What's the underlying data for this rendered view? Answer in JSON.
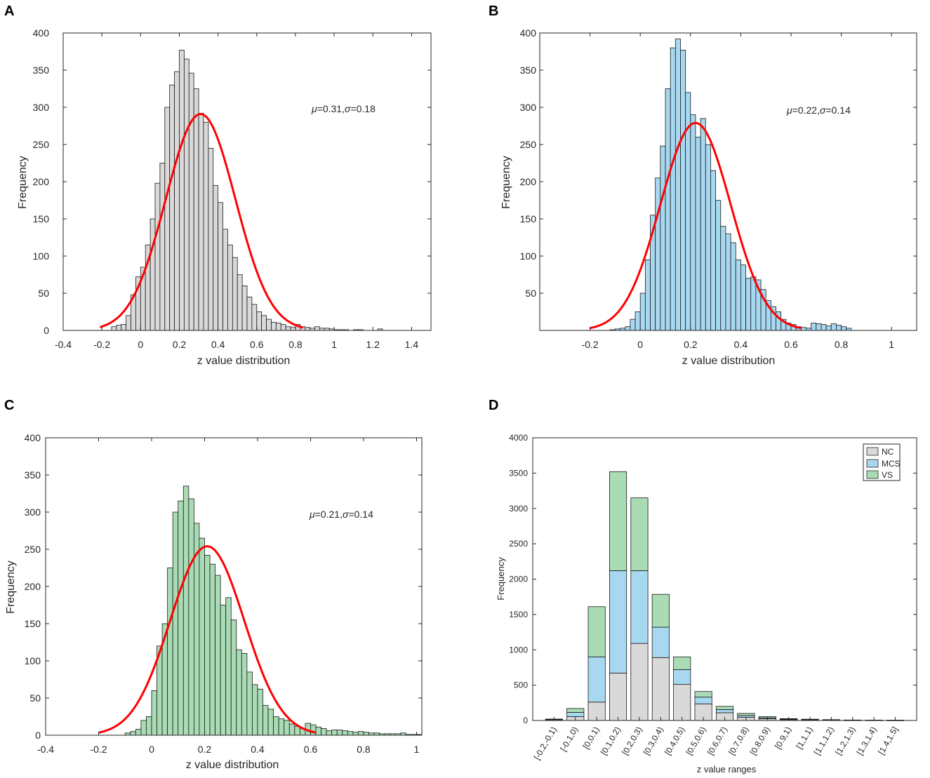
{
  "chart_data": [
    {
      "panel": "A",
      "type": "bar",
      "subtype": "histogram_with_normal_fit",
      "xlabel": "z value distribution",
      "ylabel": "Frequency",
      "xlim": [
        -0.4,
        1.5
      ],
      "ylim": [
        0,
        400
      ],
      "xticks": [
        "-0.4",
        "-0.2",
        "0",
        "0.2",
        "0.4",
        "0.6",
        "0.8",
        "1",
        "1.2",
        "1.4"
      ],
      "yticks": [
        "0",
        "50",
        "100",
        "150",
        "200",
        "250",
        "300",
        "350",
        "400"
      ],
      "bar_color": "#d9d9d9",
      "fit_color": "#ff0000",
      "bin_start": -0.15,
      "bin_width": 0.025,
      "values": [
        5,
        7,
        8,
        20,
        48,
        72,
        85,
        115,
        150,
        198,
        225,
        300,
        330,
        348,
        377,
        365,
        346,
        325,
        292,
        280,
        245,
        195,
        172,
        136,
        115,
        98,
        75,
        60,
        45,
        35,
        25,
        20,
        15,
        11,
        10,
        8,
        5,
        4,
        8,
        5,
        4,
        3,
        5,
        3,
        3,
        2,
        1,
        1,
        1,
        0,
        1,
        1,
        0,
        0,
        0,
        2
      ],
      "fit": {
        "mu": 0.31,
        "sigma": 0.18,
        "peak": 291,
        "x_from": -0.21,
        "x_to": 0.84
      },
      "annotation": {
        "mu_symbol": "μ",
        "mu_value": "=0.31,",
        "sigma_symbol": "σ",
        "sigma_value": "=0.18"
      }
    },
    {
      "panel": "B",
      "type": "bar",
      "subtype": "histogram_with_normal_fit",
      "xlabel": "z value distribution",
      "ylabel": "Frequency",
      "xlim": [
        -0.4,
        1.1
      ],
      "ylim": [
        0,
        400
      ],
      "xticks": [
        "-0.2",
        "0",
        "0.2",
        "0.4",
        "0.6",
        "0.8",
        "1"
      ],
      "yticks": [
        "50",
        "100",
        "150",
        "200",
        "250",
        "300",
        "350",
        "400"
      ],
      "bar_color": "#a8d8f0",
      "fit_color": "#ff0000",
      "bin_start": -0.12,
      "bin_width": 0.02,
      "values": [
        1,
        2,
        3,
        5,
        15,
        25,
        50,
        95,
        155,
        205,
        248,
        325,
        380,
        392,
        377,
        320,
        290,
        260,
        285,
        250,
        215,
        175,
        140,
        130,
        118,
        95,
        88,
        70,
        72,
        68,
        55,
        40,
        32,
        25,
        15,
        10,
        8,
        5,
        4,
        3,
        10,
        9,
        8,
        6,
        9,
        7,
        5,
        3
      ],
      "fit": {
        "mu": 0.22,
        "sigma": 0.14,
        "peak": 279,
        "x_from": -0.2,
        "x_to": 0.64
      },
      "annotation": {
        "mu_symbol": "μ",
        "mu_value": "=0.22,",
        "sigma_symbol": "σ",
        "sigma_value": "=0.14"
      }
    },
    {
      "panel": "C",
      "type": "bar",
      "subtype": "histogram_with_normal_fit",
      "xlabel": "z value distribution",
      "ylabel": "Frequency",
      "xlim": [
        -0.4,
        1.02
      ],
      "ylim": [
        0,
        400
      ],
      "xticks": [
        "-0.4",
        "-0.2",
        "0",
        "0.2",
        "0.4",
        "0.6",
        "0.8",
        "1"
      ],
      "yticks": [
        "0",
        "50",
        "100",
        "150",
        "200",
        "250",
        "300",
        "350",
        "400"
      ],
      "bar_color": "#a9dbb5",
      "fit_color": "#ff0000",
      "bin_start": -0.1,
      "bin_width": 0.02,
      "values": [
        3,
        5,
        8,
        20,
        25,
        60,
        120,
        150,
        225,
        300,
        315,
        335,
        318,
        285,
        265,
        242,
        230,
        215,
        175,
        185,
        155,
        115,
        110,
        85,
        68,
        62,
        40,
        35,
        25,
        22,
        20,
        15,
        12,
        9,
        16,
        14,
        11,
        9,
        6,
        7,
        7,
        6,
        5,
        4,
        5,
        4,
        3,
        3,
        2,
        2,
        2,
        2,
        3,
        1,
        1,
        1
      ],
      "fit": {
        "mu": 0.21,
        "sigma": 0.14,
        "peak": 254,
        "x_from": -0.2,
        "x_to": 0.62
      },
      "annotation": {
        "mu_symbol": "μ",
        "mu_value": "=0.21,",
        "sigma_symbol": "σ",
        "sigma_value": "=0.14"
      }
    },
    {
      "panel": "D",
      "type": "bar",
      "subtype": "stacked",
      "xlabel": "z value ranges",
      "ylabel": "Frequency",
      "ylim": [
        0,
        4000
      ],
      "yticks": [
        "0",
        "500",
        "1000",
        "1500",
        "2000",
        "2500",
        "3000",
        "3500",
        "4000"
      ],
      "categories": [
        "[-0.2,-0.1)",
        "[-0.1,0)",
        "[0,0.1)",
        "[0.1,0.2)",
        "[0.2,0.3)",
        "[0.3,0.4)",
        "[0.4,0.5)",
        "[0.5,0.6)",
        "[0.6,0.7)",
        "[0.7,0.8)",
        "[0.8,0.9)",
        "[0.9,1)",
        "[1,1.1)",
        "[1.1,1.2)",
        "[1.2,1.3)",
        "[1.3,1.4)",
        "[1.4,1.5]"
      ],
      "series": [
        {
          "name": "NC",
          "color": "#d9d9d9",
          "values": [
            10,
            55,
            260,
            670,
            1090,
            890,
            510,
            235,
            110,
            45,
            25,
            12,
            8,
            5,
            3,
            3,
            2
          ]
        },
        {
          "name": "MCS",
          "color": "#a8d8f0",
          "values": [
            5,
            60,
            640,
            1450,
            1030,
            430,
            210,
            95,
            45,
            25,
            12,
            8,
            5,
            4,
            2,
            1,
            1
          ]
        },
        {
          "name": "VS",
          "color": "#a9dbb5",
          "values": [
            5,
            55,
            710,
            1400,
            1030,
            465,
            180,
            80,
            45,
            30,
            18,
            6,
            5,
            3,
            2,
            1,
            1
          ]
        }
      ],
      "legend_position": "top-right"
    }
  ]
}
